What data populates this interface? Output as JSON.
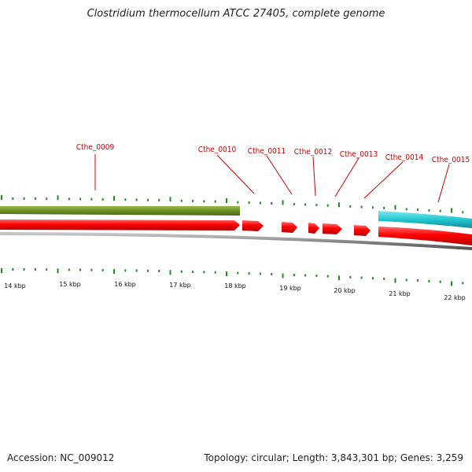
{
  "title": "Clostridium thermocellum ATCC 27405, complete genome",
  "footer": {
    "accession": "Accession: NC_009012",
    "summary": "Topology: circular; Length: 3,843,301 bp; Genes: 3,259"
  },
  "colors": {
    "gene": "#ff0000",
    "olive_feature": "#6b8e23",
    "cyan_feature": "#22c8d2",
    "backbone": "#808080",
    "tick": "#228b22",
    "label": "#cc0000"
  },
  "scale": {
    "unit": "kbp",
    "labels": [
      "14 kbp",
      "15 kbp",
      "16 kbp",
      "17 kbp",
      "18 kbp",
      "19 kbp",
      "20 kbp",
      "21 kbp",
      "22 kbp"
    ]
  },
  "genes": [
    {
      "name": "Cthe_0009"
    },
    {
      "name": "Cthe_0010"
    },
    {
      "name": "Cthe_0011"
    },
    {
      "name": "Cthe_0012"
    },
    {
      "name": "Cthe_0013"
    },
    {
      "name": "Cthe_0014"
    },
    {
      "name": "Cthe_0015"
    }
  ]
}
